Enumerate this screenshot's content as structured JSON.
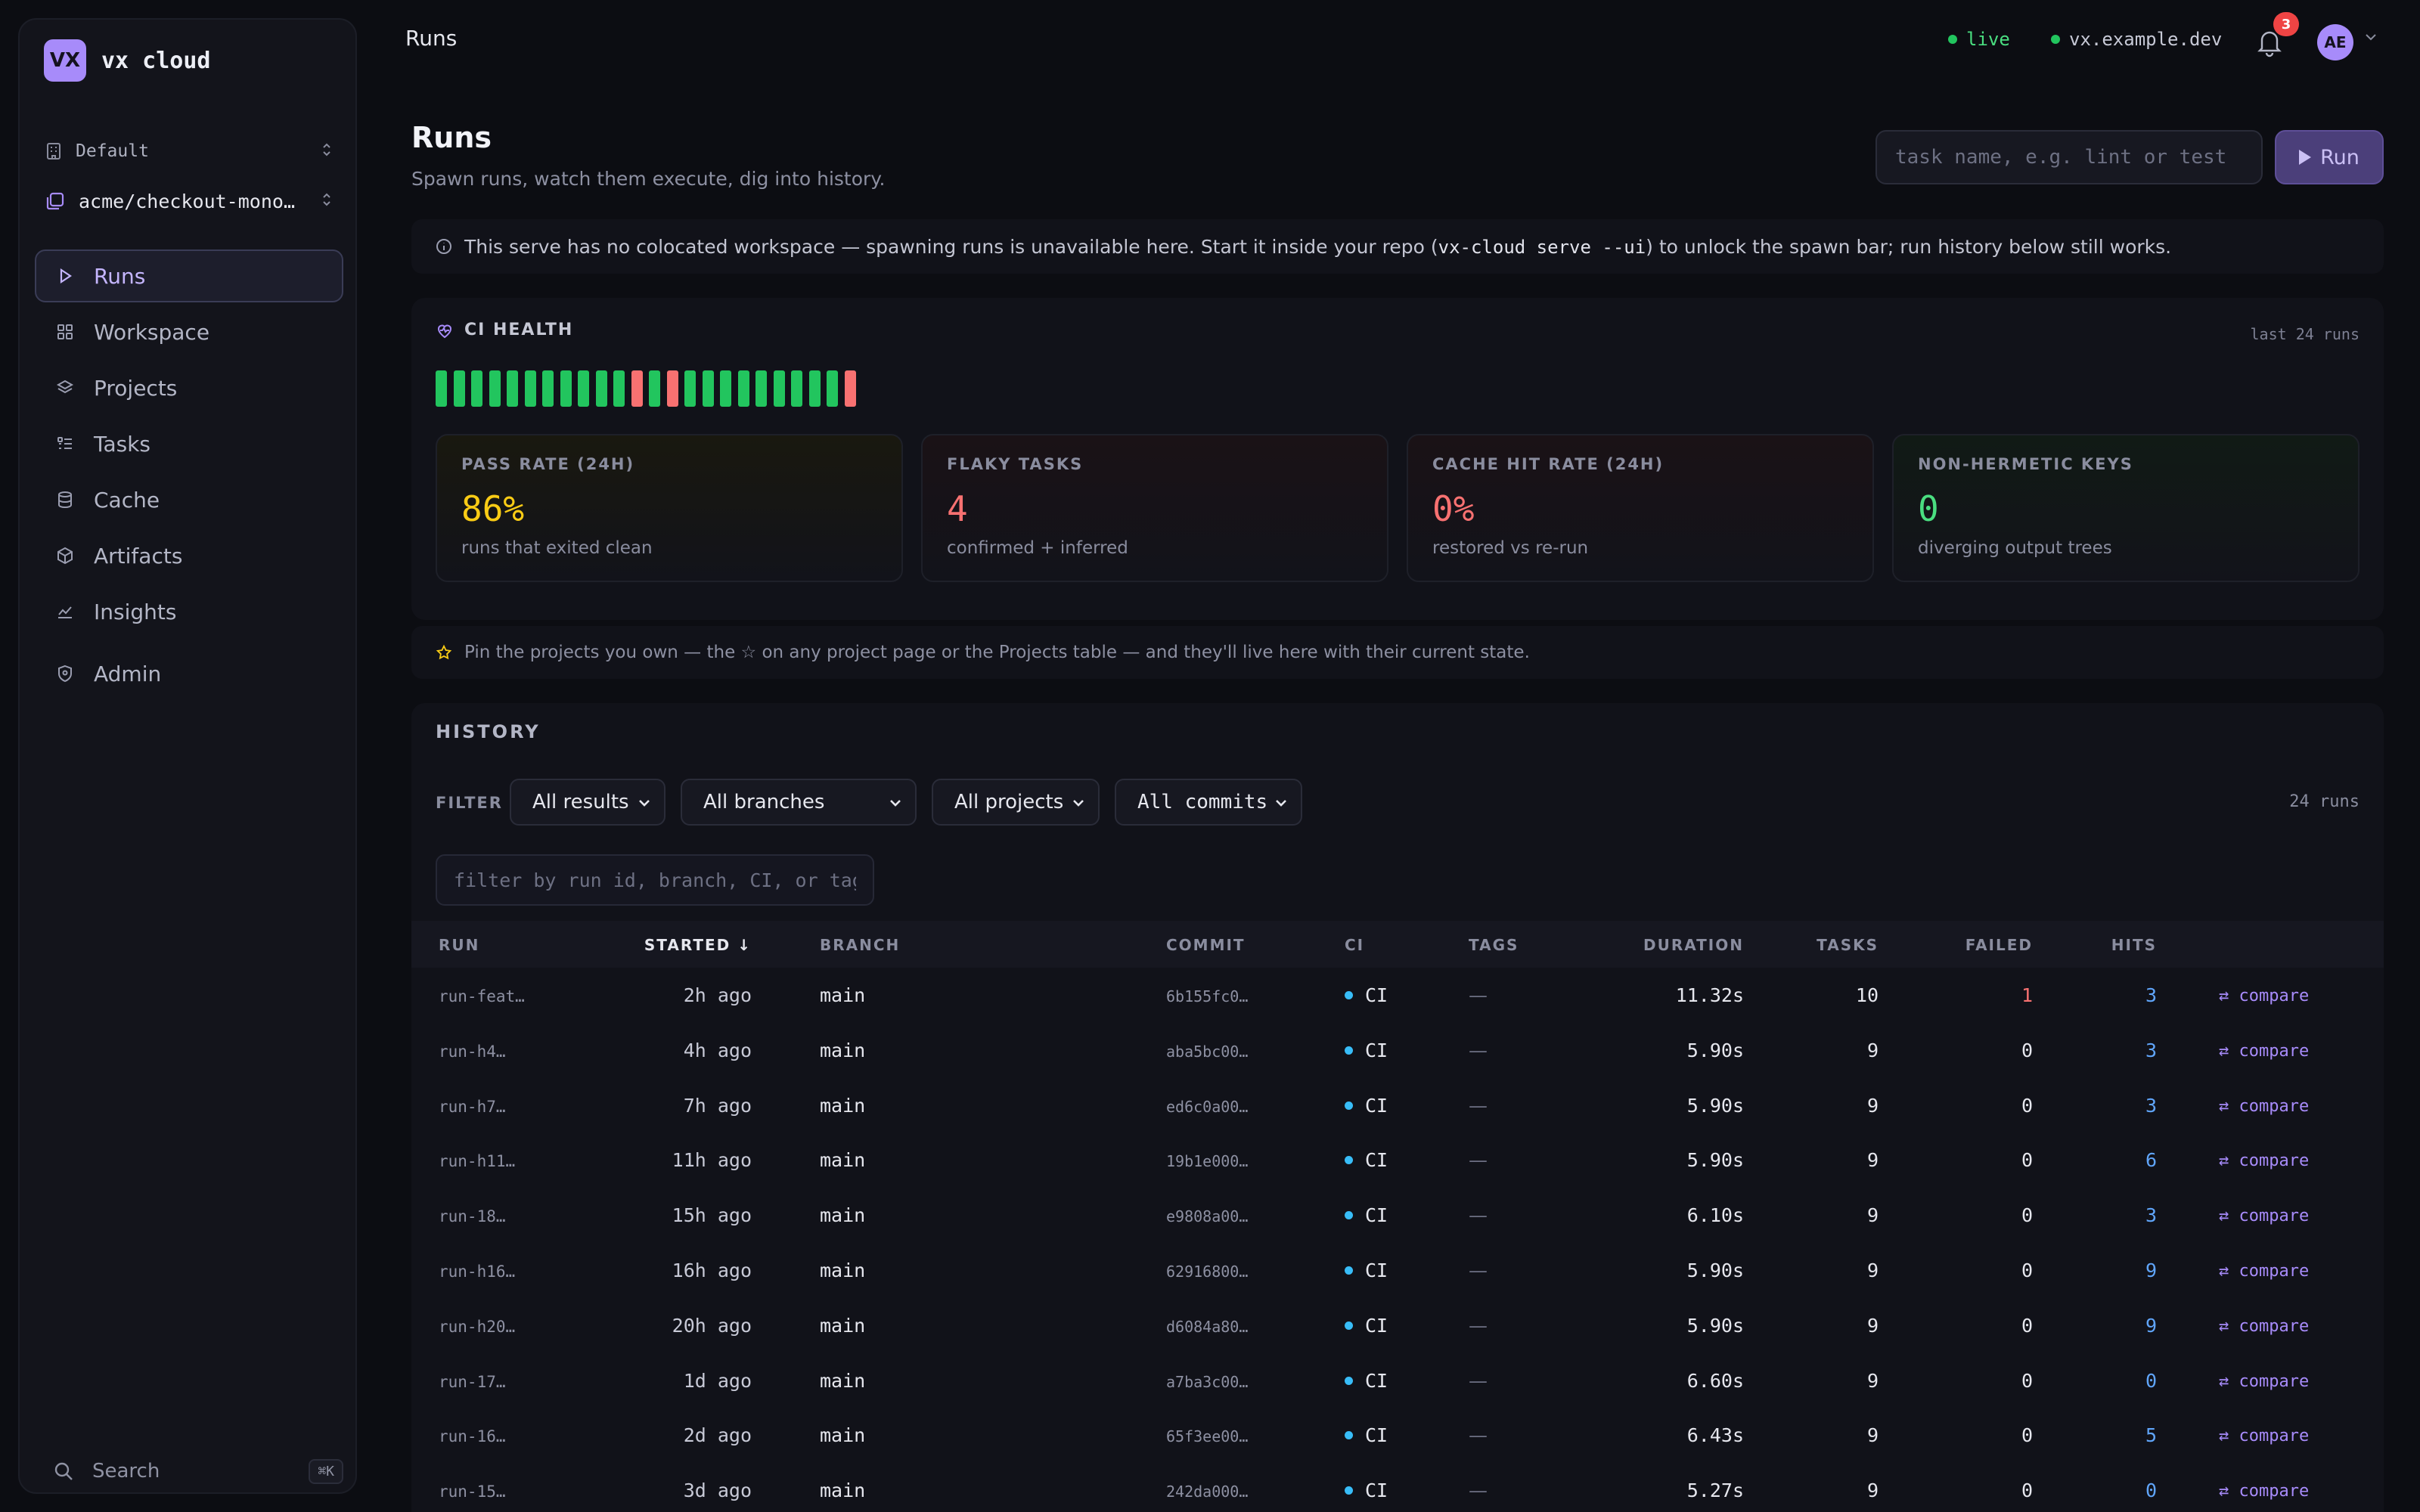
{
  "brand": {
    "logo": "VX",
    "name": "vx cloud"
  },
  "org": {
    "label": "Default",
    "icon": "building-icon"
  },
  "repo": {
    "label": "acme/checkout-monorepo",
    "icon": "repo-icon"
  },
  "nav": [
    {
      "label": "Runs",
      "icon": "play-icon",
      "active": true
    },
    {
      "label": "Workspace",
      "icon": "grid-icon"
    },
    {
      "label": "Projects",
      "icon": "layers-icon"
    },
    {
      "label": "Tasks",
      "icon": "list-icon"
    },
    {
      "label": "Cache",
      "icon": "database-icon"
    },
    {
      "label": "Artifacts",
      "icon": "box-icon"
    },
    {
      "label": "Insights",
      "icon": "chart-icon"
    },
    {
      "label": "Admin",
      "icon": "shield-icon"
    }
  ],
  "search": {
    "label": "Search",
    "shortcut": "⌘K"
  },
  "topbar": {
    "title": "Runs",
    "live": "live",
    "host": "vx.example.dev",
    "notifications": "3",
    "avatar": "AE"
  },
  "header": {
    "title": "Runs",
    "subtitle": "Spawn runs, watch them execute, dig into history.",
    "task_placeholder": "task name, e.g. lint or test",
    "run_label": "Run"
  },
  "notice": {
    "pre": "This serve has no colocated workspace — spawning runs is unavailable here. Start it inside your repo (",
    "code": "vx-cloud serve --ui",
    "post": ") to unlock the spawn bar; run history below still works."
  },
  "health": {
    "title": "CI HEALTH",
    "window": "last 24 runs",
    "runs": [
      "pass",
      "pass",
      "pass",
      "pass",
      "pass",
      "pass",
      "pass",
      "pass",
      "pass",
      "pass",
      "pass",
      "fail",
      "pass",
      "fail",
      "pass",
      "pass",
      "pass",
      "pass",
      "pass",
      "pass",
      "pass",
      "pass",
      "pass",
      "fail"
    ],
    "colors": {
      "pass": "#22c55e",
      "fail": "#f87171"
    },
    "stats": [
      {
        "key": "PASS RATE (24H)",
        "value": "86%",
        "desc": "runs that exited clean",
        "color": "#facc15",
        "tint": "#19180f"
      },
      {
        "key": "FLAKY TASKS",
        "value": "4",
        "desc": "confirmed + inferred",
        "color": "#f87171",
        "tint": "#1a1216"
      },
      {
        "key": "CACHE HIT RATE (24H)",
        "value": "0%",
        "desc": "restored vs re-run",
        "color": "#f87171",
        "tint": "#1a1216"
      },
      {
        "key": "NON-HERMETIC KEYS",
        "value": "0",
        "desc": "diverging output trees",
        "color": "#4ade80",
        "tint": "#111a15"
      }
    ]
  },
  "pin_hint": "Pin the projects you own — the ☆ on any project page or the Projects table — and they'll live here with their current state.",
  "history": {
    "title": "HISTORY",
    "filter_label": "FILTER",
    "filters": [
      "All results",
      "All branches",
      "All projects",
      "All commits"
    ],
    "count": "24 runs",
    "search_placeholder": "filter by run id, branch, CI, or tag…",
    "columns": {
      "run": "RUN",
      "started": "STARTED ↓",
      "branch": "BRANCH",
      "commit": "COMMIT",
      "ci": "CI",
      "tags": "TAGS",
      "duration": "DURATION",
      "tasks": "TASKS",
      "failed": "FAILED",
      "hits": "HITS"
    },
    "rows": [
      {
        "run": "run-feat…",
        "started": "2h ago",
        "branch": "main",
        "commit": "6b155fc0…",
        "ci": "CI",
        "tags": "—",
        "duration": "11.32s",
        "tasks": "10",
        "failed": "1",
        "hits": "3",
        "action": "⇄ compare"
      },
      {
        "run": "run-h4…",
        "started": "4h ago",
        "branch": "main",
        "commit": "aba5bc00…",
        "ci": "CI",
        "tags": "—",
        "duration": "5.90s",
        "tasks": "9",
        "failed": "0",
        "hits": "3",
        "action": "⇄ compare"
      },
      {
        "run": "run-h7…",
        "started": "7h ago",
        "branch": "main",
        "commit": "ed6c0a00…",
        "ci": "CI",
        "tags": "—",
        "duration": "5.90s",
        "tasks": "9",
        "failed": "0",
        "hits": "3",
        "action": "⇄ compare"
      },
      {
        "run": "run-h11…",
        "started": "11h ago",
        "branch": "main",
        "commit": "19b1e000…",
        "ci": "CI",
        "tags": "—",
        "duration": "5.90s",
        "tasks": "9",
        "failed": "0",
        "hits": "6",
        "action": "⇄ compare"
      },
      {
        "run": "run-18…",
        "started": "15h ago",
        "branch": "main",
        "commit": "e9808a00…",
        "ci": "CI",
        "tags": "—",
        "duration": "6.10s",
        "tasks": "9",
        "failed": "0",
        "hits": "3",
        "action": "⇄ compare"
      },
      {
        "run": "run-h16…",
        "started": "16h ago",
        "branch": "main",
        "commit": "62916800…",
        "ci": "CI",
        "tags": "—",
        "duration": "5.90s",
        "tasks": "9",
        "failed": "0",
        "hits": "9",
        "action": "⇄ compare"
      },
      {
        "run": "run-h20…",
        "started": "20h ago",
        "branch": "main",
        "commit": "d6084a80…",
        "ci": "CI",
        "tags": "—",
        "duration": "5.90s",
        "tasks": "9",
        "failed": "0",
        "hits": "9",
        "action": "⇄ compare"
      },
      {
        "run": "run-17…",
        "started": "1d ago",
        "branch": "main",
        "commit": "a7ba3c00…",
        "ci": "CI",
        "tags": "—",
        "duration": "6.60s",
        "tasks": "9",
        "failed": "0",
        "hits": "0",
        "action": "⇄ compare"
      },
      {
        "run": "run-16…",
        "started": "2d ago",
        "branch": "main",
        "commit": "65f3ee00…",
        "ci": "CI",
        "tags": "—",
        "duration": "6.43s",
        "tasks": "9",
        "failed": "0",
        "hits": "5",
        "action": "⇄ compare"
      },
      {
        "run": "run-15…",
        "started": "3d ago",
        "branch": "main",
        "commit": "242da000…",
        "ci": "CI",
        "tags": "—",
        "duration": "5.27s",
        "tasks": "9",
        "failed": "0",
        "hits": "0",
        "action": "⇄ compare"
      }
    ]
  },
  "colors": {
    "accent": "#a78bfa",
    "danger": "#f87171",
    "info": "#60a5fa",
    "ok": "#22c55e"
  }
}
